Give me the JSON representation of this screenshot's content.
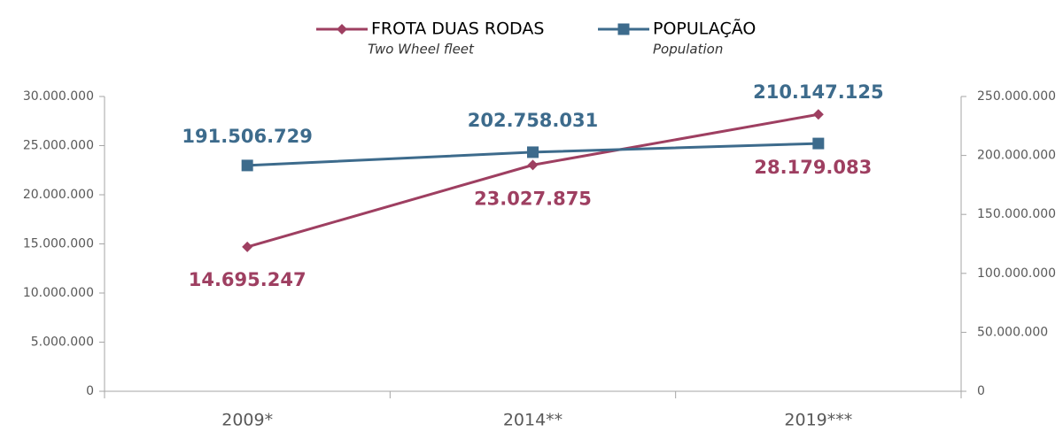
{
  "chart_data": {
    "type": "line",
    "categories": [
      "2009*",
      "2014**",
      "2019***"
    ],
    "series": [
      {
        "name": "FROTA DUAS RODAS",
        "subtitle": "Two Wheel fleet",
        "color": "#9e3f61",
        "marker": "diamond",
        "values": [
          14695247,
          23027875,
          28179083
        ],
        "value_labels": [
          "14.695.247",
          "23.027.875",
          "28.179.083"
        ]
      },
      {
        "name": "POPULAÇÃO",
        "subtitle": "Population",
        "color": "#3d6b8c",
        "marker": "square",
        "axis": "y2",
        "values": [
          191506729,
          202758031,
          210147125
        ],
        "value_labels": [
          "191.506.729",
          "202.758.031",
          "210.147.125"
        ]
      }
    ],
    "ylim": [
      0,
      30000000
    ],
    "yticks": [
      0,
      {
        "value": 5000000,
        "label": "5.000.000"
      },
      {
        "value": 10000000,
        "label": "10.000.000"
      },
      {
        "value": 15000000,
        "label": "15.000.000"
      },
      {
        "value": 20000000,
        "label": "20.000.000"
      },
      {
        "value": 25000000,
        "label": "25.000.000"
      },
      {
        "value": 30000000,
        "label": "30.000.000"
      }
    ],
    "y2lim": [
      0,
      250000000
    ],
    "y2ticks": [
      0,
      {
        "value": 50000000,
        "label": "50.000.000"
      },
      {
        "value": 100000000,
        "label": "100.000.000"
      },
      {
        "value": 150000000,
        "label": "150.000.000"
      },
      {
        "value": 200000000,
        "label": "200.000.000"
      },
      {
        "value": 250000000,
        "label": "250.000.000"
      }
    ],
    "grid": false,
    "legend": "top"
  }
}
